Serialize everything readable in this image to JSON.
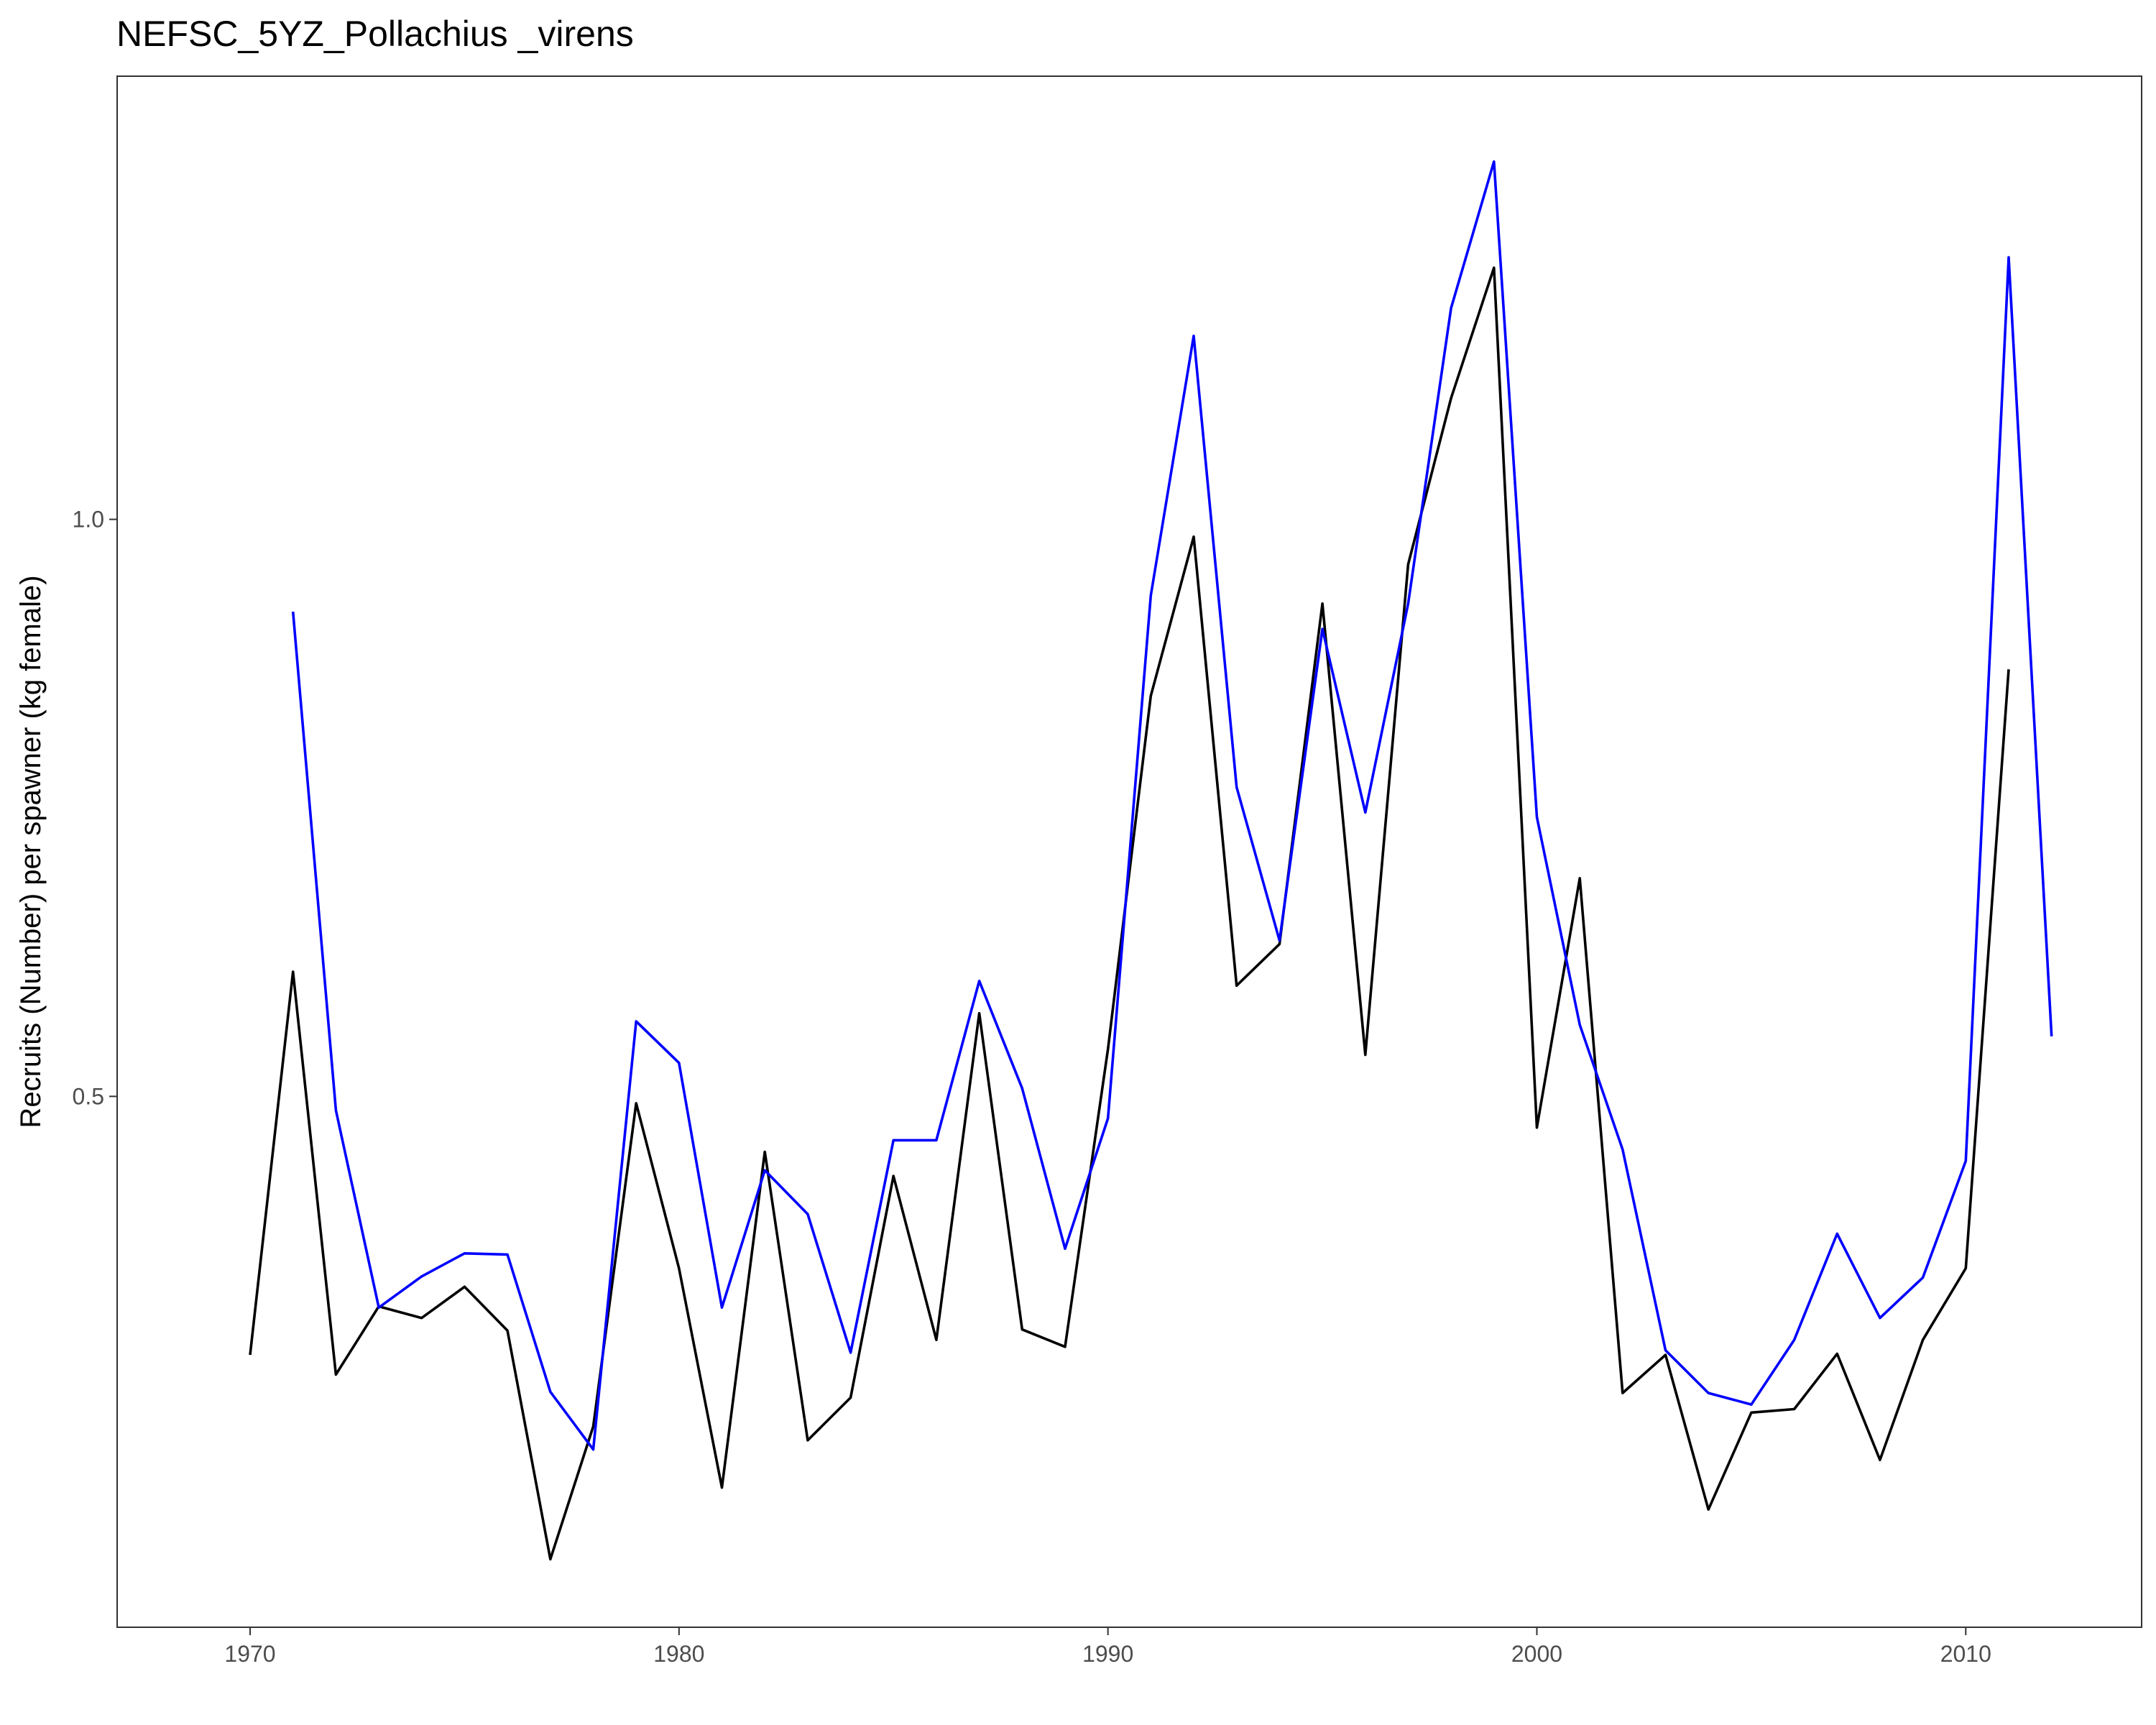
{
  "chart_data": {
    "type": "line",
    "title": "NEFSC_5YZ_Pollachius _virens",
    "xlabel": "",
    "ylabel": "Recruits (Number) per spawner (kg female)",
    "xlim": [
      1966.9,
      2014.1
    ],
    "ylim": [
      0.04,
      1.384
    ],
    "x_ticks": [
      1970,
      1980,
      1990,
      2000,
      2010
    ],
    "x_tick_labels": [
      "1970",
      "1980",
      "1990",
      "2000",
      "2010"
    ],
    "y_ticks": [
      0.5,
      1.0
    ],
    "y_tick_labels": [
      "0.5",
      "1.0"
    ],
    "grid": false,
    "legend": "none",
    "series": [
      {
        "color": "#000000",
        "x": [
          1970,
          1971,
          1972,
          1973,
          1974,
          1975,
          1976,
          1977,
          1978,
          1979,
          1980,
          1981,
          1982,
          1983,
          1984,
          1985,
          1986,
          1987,
          1988,
          1989,
          1990,
          1991,
          1992,
          1993,
          1994,
          1995,
          1996,
          1997,
          1998,
          1999,
          2000,
          2001,
          2002,
          2003,
          2004,
          2005,
          2006,
          2007,
          2008,
          2009,
          2010,
          2011
        ],
        "y": [
          0.276,
          0.608,
          0.259,
          0.318,
          0.308,
          0.335,
          0.297,
          0.099,
          0.214,
          0.494,
          0.351,
          0.161,
          0.452,
          0.202,
          0.239,
          0.431,
          0.289,
          0.572,
          0.298,
          0.283,
          0.541,
          0.847,
          0.985,
          0.596,
          0.632,
          0.927,
          0.536,
          0.961,
          1.105,
          1.218,
          0.473,
          0.689,
          0.243,
          0.276,
          0.142,
          0.226,
          0.229,
          0.277,
          0.185,
          0.289,
          0.351,
          0.87
        ]
      },
      {
        "color": "#0000ff",
        "x": [
          1971,
          1972,
          1973,
          1974,
          1975,
          1976,
          1977,
          1978,
          1979,
          1980,
          1981,
          1982,
          1983,
          1984,
          1985,
          1986,
          1987,
          1988,
          1989,
          1990,
          1991,
          1992,
          1993,
          1994,
          1995,
          1996,
          1997,
          1998,
          1999,
          2000,
          2001,
          2002,
          2003,
          2004,
          2005,
          2006,
          2007,
          2008,
          2009,
          2010,
          2011,
          2012
        ],
        "y": [
          0.92,
          0.488,
          0.317,
          0.344,
          0.364,
          0.363,
          0.244,
          0.194,
          0.565,
          0.529,
          0.317,
          0.436,
          0.398,
          0.278,
          0.462,
          0.462,
          0.6,
          0.507,
          0.368,
          0.481,
          0.934,
          1.159,
          0.768,
          0.635,
          0.905,
          0.746,
          0.927,
          1.183,
          1.31,
          0.742,
          0.562,
          0.454,
          0.28,
          0.243,
          0.233,
          0.289,
          0.381,
          0.308,
          0.343,
          0.444,
          1.227,
          0.552
        ]
      }
    ]
  }
}
